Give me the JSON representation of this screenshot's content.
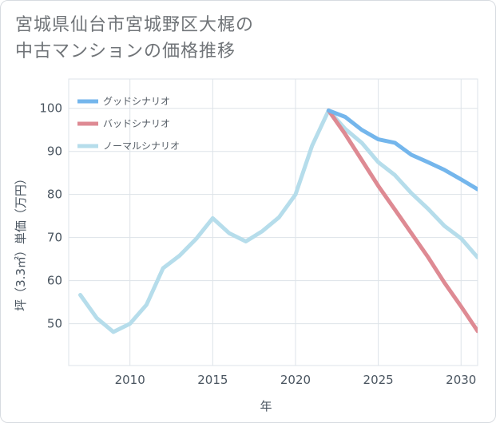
{
  "title_lines": [
    "宮城県仙台市宮城野区大梶の",
    "中古マンションの価格推移"
  ],
  "chart_data": {
    "type": "line",
    "xlabel": "年",
    "ylabel": "坪（3.3㎡）単価（万円）",
    "xlim": [
      2006.3,
      2031
    ],
    "ylim": [
      40.3,
      106.8
    ],
    "x_ticks": [
      2010,
      2015,
      2020,
      2025,
      2030
    ],
    "y_ticks": [
      50,
      60,
      70,
      80,
      90,
      100
    ],
    "grid": true,
    "legend_position": "top-left",
    "series": [
      {
        "name": "グッドシナリオ",
        "color": "#74b6ec",
        "x": [
          2022,
          2023,
          2024,
          2025,
          2026,
          2027,
          2028,
          2029,
          2030,
          2031
        ],
        "y": [
          99.5,
          98,
          95,
          92.8,
          92,
          89.2,
          87.5,
          85.7,
          83.5,
          81.2
        ]
      },
      {
        "name": "バッドシナリオ",
        "color": "#de8a93",
        "x": [
          2022,
          2023,
          2024,
          2025,
          2026,
          2027,
          2028,
          2029,
          2030,
          2031
        ],
        "y": [
          99.5,
          94,
          88,
          82,
          76.5,
          71,
          65.5,
          59.5,
          54,
          48.3
        ]
      },
      {
        "name": "ノーマルシナリオ",
        "color": "#b6ddeb",
        "x": [
          2007,
          2008,
          2009,
          2010,
          2011,
          2012,
          2013,
          2014,
          2015,
          2016,
          2017,
          2018,
          2019,
          2020,
          2021,
          2022,
          2023,
          2024,
          2025,
          2026,
          2027,
          2028,
          2029,
          2030,
          2031
        ],
        "y": [
          56.7,
          51.3,
          48.1,
          50,
          54.4,
          62.9,
          65.8,
          69.7,
          74.5,
          71,
          69.1,
          71.5,
          74.7,
          80,
          91.3,
          99.5,
          95.2,
          92,
          87.5,
          84.5,
          80.3,
          76.7,
          72.7,
          69.8,
          65.4
        ]
      }
    ]
  }
}
